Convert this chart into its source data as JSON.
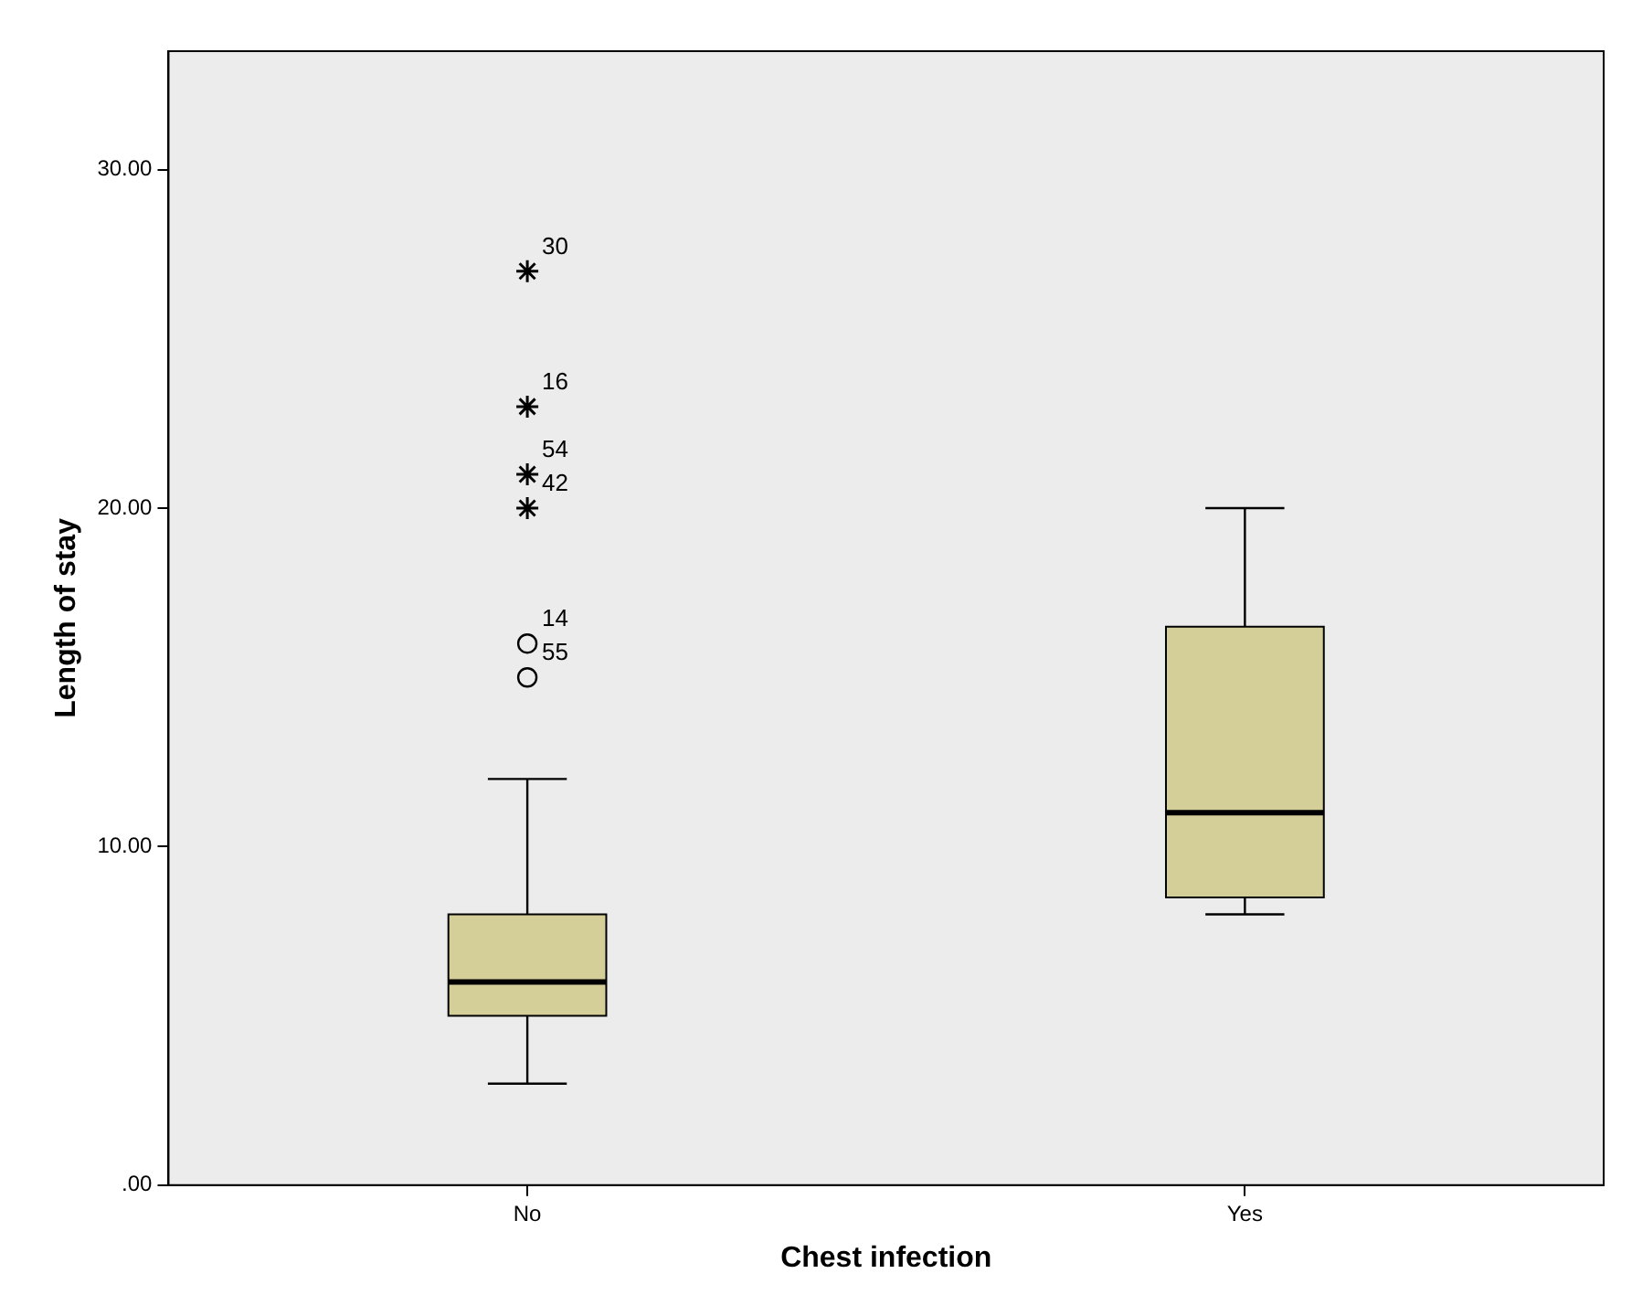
{
  "chart_data": {
    "type": "box",
    "xlabel": "Chest infection",
    "ylabel": "Length of stay",
    "categories": [
      "No",
      "Yes"
    ],
    "series": [
      {
        "color": "#d4cf98",
        "boxes": [
          {
            "low": 3,
            "q1": 5,
            "median": 6,
            "q3": 8,
            "high": 12
          },
          {
            "low": 8,
            "q1": 8.5,
            "median": 11,
            "q3": 16.5,
            "high": 20
          }
        ]
      },
      {
        "type": "scatter",
        "marker": "circle",
        "color": "#000000",
        "x": [
          "No",
          "No"
        ],
        "values": [
          16,
          15
        ]
      },
      {
        "type": "scatter",
        "marker": "cross",
        "color": "#000000",
        "x": [
          "No",
          "No",
          "No",
          "No"
        ],
        "values": [
          27,
          23,
          21,
          20
        ]
      }
    ],
    "ylim": [
      0,
      33.5
    ],
    "yticks": [
      {
        "value": 0,
        "label": ".00"
      },
      {
        "value": 10,
        "label": "10.00"
      },
      {
        "value": 20,
        "label": "20.00"
      },
      {
        "value": 30,
        "label": "30.00"
      }
    ],
    "grid": false,
    "legend": false,
    "annotations": [
      {
        "text": "30",
        "x": "No",
        "y": 27
      },
      {
        "text": "16",
        "x": "No",
        "y": 23
      },
      {
        "text": "54",
        "x": "No",
        "y": 21
      },
      {
        "text": "42",
        "x": "No",
        "y": 20
      },
      {
        "text": "14",
        "x": "No",
        "y": 16
      },
      {
        "text": "55",
        "x": "No",
        "y": 15
      }
    ]
  }
}
